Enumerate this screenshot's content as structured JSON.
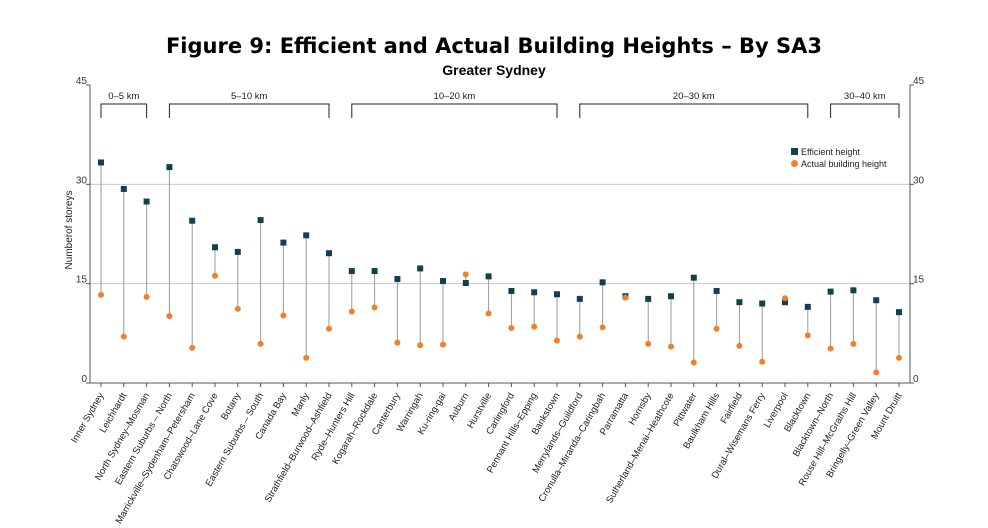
{
  "chart_data": {
    "type": "scatter",
    "title": "Figure 9: Efficient and Actual Building Heights – By SA3",
    "subtitle": "Greater Sydney",
    "ylabel": "Numberof storeys",
    "ylim": [
      0,
      45
    ],
    "yticks": [
      0,
      15,
      30,
      45
    ],
    "grid": true,
    "legend_position": "top-right",
    "categories": [
      "Inner Sydney",
      "Leichhardt",
      "North Sydney–Mosman",
      "Eastern Suburbs – North",
      "Marrickville–Sydenham–Petersham",
      "Chatswood–Lane Cove",
      "Botany",
      "Eastern Suburbs – South",
      "Canada Bay",
      "Manly",
      "Strathfield–Burwood–Ashfield",
      "Ryde–Hunters Hill",
      "Kogarah–Rockdale",
      "Canterbury",
      "Warringah",
      "Ku-ring-gai",
      "Auburn",
      "Hurstville",
      "Carlingford",
      "Pennant Hills–Epping",
      "Bankstown",
      "Merrylands–Guildford",
      "Cronulla–Miranda–Caringbah",
      "Parramatta",
      "Hornsby",
      "Sutherland–Menai–Heathcote",
      "Pittwater",
      "Baulkham Hills",
      "Fairfield",
      "Dural–Wisemans Ferry",
      "Liverpool",
      "Blacktown",
      "Blacktown–North",
      "Rouse Hill–McGraths Hill",
      "Bringelly–Green Valley",
      "Mount Druitt"
    ],
    "groups": [
      {
        "label": "0–5 km",
        "start": 0,
        "end": 2
      },
      {
        "label": "5–10 km",
        "start": 3,
        "end": 10
      },
      {
        "label": "10–20 km",
        "start": 11,
        "end": 20
      },
      {
        "label": "20–30 km",
        "start": 21,
        "end": 31
      },
      {
        "label": "30–40 km",
        "start": 32,
        "end": 35
      }
    ],
    "series": [
      {
        "name": "Efficient height",
        "color": "#12414d",
        "marker": "square",
        "values": [
          33.3,
          29.3,
          27.4,
          32.6,
          24.5,
          20.5,
          19.8,
          24.6,
          21.2,
          22.3,
          19.6,
          16.9,
          16.9,
          15.7,
          17.3,
          15.4,
          15.1,
          16.1,
          13.9,
          13.7,
          13.4,
          12.7,
          15.2,
          13.1,
          12.7,
          13.1,
          15.9,
          13.9,
          12.2,
          12.0,
          12.2,
          11.5,
          13.8,
          14.0,
          12.5,
          10.7
        ]
      },
      {
        "name": "Actual building height",
        "color": "#f07f2e",
        "marker": "circle",
        "values": [
          13.3,
          7.0,
          13.0,
          10.1,
          5.3,
          16.2,
          11.2,
          5.9,
          10.2,
          3.8,
          8.2,
          10.8,
          11.4,
          6.1,
          5.7,
          5.8,
          16.4,
          10.5,
          8.3,
          8.5,
          6.4,
          7.0,
          8.4,
          12.9,
          5.9,
          5.5,
          3.1,
          8.2,
          5.6,
          3.2,
          12.8,
          7.2,
          5.2,
          5.9,
          1.6,
          3.8
        ]
      }
    ]
  }
}
